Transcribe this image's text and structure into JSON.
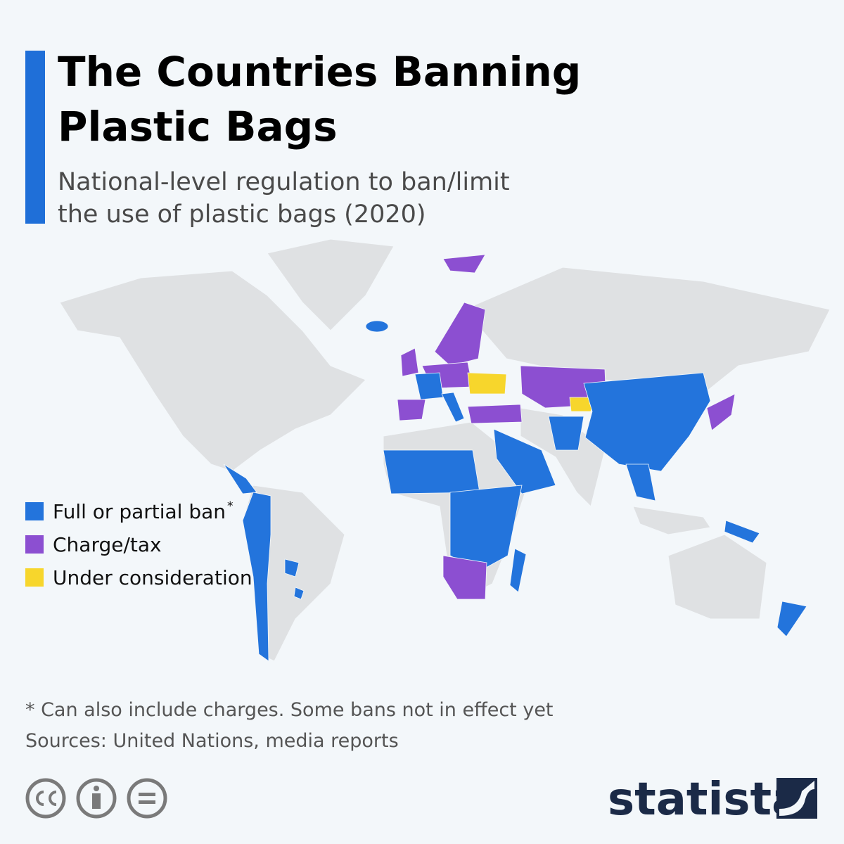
{
  "header": {
    "title_lines": [
      "The Countries Banning",
      "Plastic Bags"
    ],
    "subtitle_lines": [
      "National-level regulation to ban/limit",
      "the use of plastic bags (2020)"
    ]
  },
  "legend": [
    {
      "label": "Full or partial ban",
      "note_marker": "*",
      "color": "#2374dc"
    },
    {
      "label": "Charge/tax",
      "color": "#8c4fd1"
    },
    {
      "label": "Under consideration",
      "color": "#f7d62c"
    }
  ],
  "footer": {
    "note": "* Can also include charges. Some bans not in effect yet",
    "source": "Sources: United Nations, media reports",
    "brand": "statista"
  }
}
